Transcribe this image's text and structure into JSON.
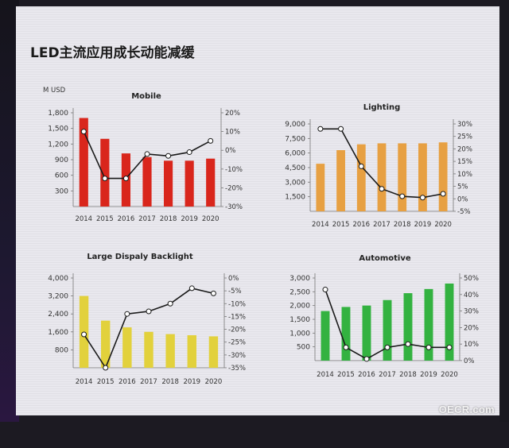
{
  "slide": {
    "title": "LED主流应用成长动能减缓",
    "watermark": "OECR.com"
  },
  "chart_data": [
    {
      "id": "mobile",
      "type": "bar",
      "title": "Mobile",
      "unit_label": "M USD",
      "categories": [
        "2014",
        "2015",
        "2016",
        "2017",
        "2018",
        "2019",
        "2020"
      ],
      "ylim": [
        0,
        1800
      ],
      "yticks": [
        "1,800",
        "1,500",
        "1,200",
        "900",
        "600",
        "300"
      ],
      "ytick_values": [
        1800,
        1500,
        1200,
        900,
        600,
        300
      ],
      "y2lim": [
        -30,
        20
      ],
      "y2ticks": [
        "20%",
        "10%",
        "0%",
        "-10%",
        "-20%",
        "-30%"
      ],
      "y2tick_values": [
        20,
        10,
        0,
        -10,
        -20,
        -30
      ],
      "bar_color": "#d9261c",
      "series": [
        {
          "kind": "bar",
          "values": [
            1700,
            1300,
            1020,
            950,
            880,
            880,
            920
          ]
        },
        {
          "kind": "line",
          "values": [
            10,
            -15,
            -15,
            -2,
            -3,
            -1,
            5
          ]
        }
      ]
    },
    {
      "id": "lighting",
      "type": "bar",
      "title": "Lighting",
      "unit_label": "",
      "categories": [
        "2014",
        "2015",
        "2016",
        "2017",
        "2018",
        "2019",
        "2020"
      ],
      "ylim": [
        0,
        9000
      ],
      "yticks": [
        "9,000",
        "7,500",
        "6,000",
        "4,500",
        "3,000",
        "1,500"
      ],
      "ytick_values": [
        9000,
        7500,
        6000,
        4500,
        3000,
        1500
      ],
      "y2lim": [
        -5,
        30
      ],
      "y2ticks": [
        "30%",
        "25%",
        "20%",
        "15%",
        "10%",
        "5%",
        "0%",
        "-5%"
      ],
      "y2tick_values": [
        30,
        25,
        20,
        15,
        10,
        5,
        0,
        -5
      ],
      "bar_color": "#e7a042",
      "series": [
        {
          "kind": "bar",
          "values": [
            4900,
            6300,
            6900,
            7000,
            7000,
            7000,
            7100
          ]
        },
        {
          "kind": "line",
          "values": [
            28,
            28,
            13,
            4,
            1,
            0.5,
            2
          ]
        }
      ]
    },
    {
      "id": "backlight",
      "type": "bar",
      "title": "Large Dispaly Backlight",
      "unit_label": "",
      "categories": [
        "2014",
        "2015",
        "2016",
        "2017",
        "2018",
        "2019",
        "2020"
      ],
      "ylim": [
        0,
        4000
      ],
      "yticks": [
        "4,000",
        "3,200",
        "2,400",
        "1,600",
        "800"
      ],
      "ytick_values": [
        4000,
        3200,
        2400,
        1600,
        800
      ],
      "y2lim": [
        -35,
        0
      ],
      "y2ticks": [
        "0%",
        "-5%",
        "-10%",
        "-15%",
        "-20%",
        "-25%",
        "-30%",
        "-35%"
      ],
      "y2tick_values": [
        0,
        -5,
        -10,
        -15,
        -20,
        -25,
        -30,
        -35
      ],
      "bar_color": "#e2d13c",
      "series": [
        {
          "kind": "bar",
          "values": [
            3200,
            2100,
            1800,
            1600,
            1500,
            1450,
            1400
          ]
        },
        {
          "kind": "line",
          "values": [
            -22,
            -35,
            -14,
            -13,
            -10,
            -4,
            -6
          ]
        }
      ]
    },
    {
      "id": "automotive",
      "type": "bar",
      "title": "Automotive",
      "unit_label": "",
      "categories": [
        "2014",
        "2015",
        "2016",
        "2017",
        "2018",
        "2019",
        "2020"
      ],
      "ylim": [
        0,
        3000
      ],
      "yticks": [
        "3,000",
        "2,500",
        "2,000",
        "1,500",
        "1,000",
        "500"
      ],
      "ytick_values": [
        3000,
        2500,
        2000,
        1500,
        1000,
        500
      ],
      "y2lim": [
        0,
        50
      ],
      "y2ticks": [
        "50%",
        "40%",
        "30%",
        "20%",
        "10%",
        "0%"
      ],
      "y2tick_values": [
        50,
        40,
        30,
        20,
        10,
        0
      ],
      "bar_color": "#33b240",
      "series": [
        {
          "kind": "bar",
          "values": [
            1800,
            1950,
            2000,
            2200,
            2450,
            2600,
            2800
          ]
        },
        {
          "kind": "line",
          "values": [
            43,
            8,
            1,
            8,
            10,
            8,
            8
          ]
        }
      ]
    }
  ]
}
